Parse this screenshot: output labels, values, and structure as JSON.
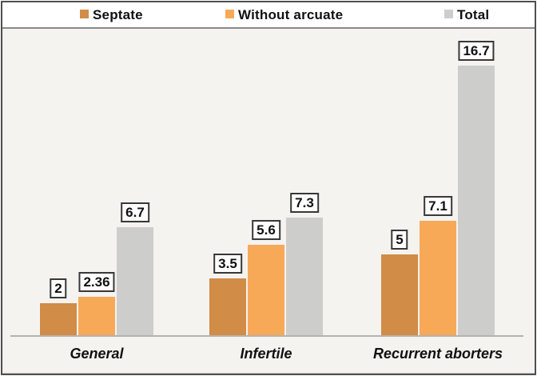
{
  "chart_data": {
    "type": "bar",
    "title": "",
    "categories": [
      "General",
      "Infertile",
      "Recurrent aborters"
    ],
    "series": [
      {
        "name": "Septate",
        "color": "#d18c47",
        "values": [
          2,
          3.5,
          5
        ],
        "labels": [
          "2",
          "3.5",
          "5"
        ]
      },
      {
        "name": "Without arcuate",
        "color": "#f7a958",
        "values": [
          2.36,
          5.6,
          7.1
        ],
        "labels": [
          "2.36",
          "5.6",
          "7.1"
        ]
      },
      {
        "name": "Total",
        "color": "#cdcdcc",
        "values": [
          6.7,
          7.3,
          16.7
        ],
        "labels": [
          "6.7",
          "7.3",
          "16.7"
        ]
      }
    ],
    "xlabel": "",
    "ylabel": "",
    "ylim": [
      0,
      19
    ],
    "grid": false,
    "y_axis_visible": false,
    "legend_position": "top",
    "data_label_style": "boxed"
  },
  "colors": {
    "plot_background": "#f4f3f0",
    "legend_background": "#ffffff",
    "frame_border": "#4f4f4f",
    "legend_separator": "#8a8a8a",
    "axis_line": "#b5b3b0",
    "label_box_border": "#383838",
    "label_box_background": "#fdfdfd",
    "text": "#111111"
  }
}
